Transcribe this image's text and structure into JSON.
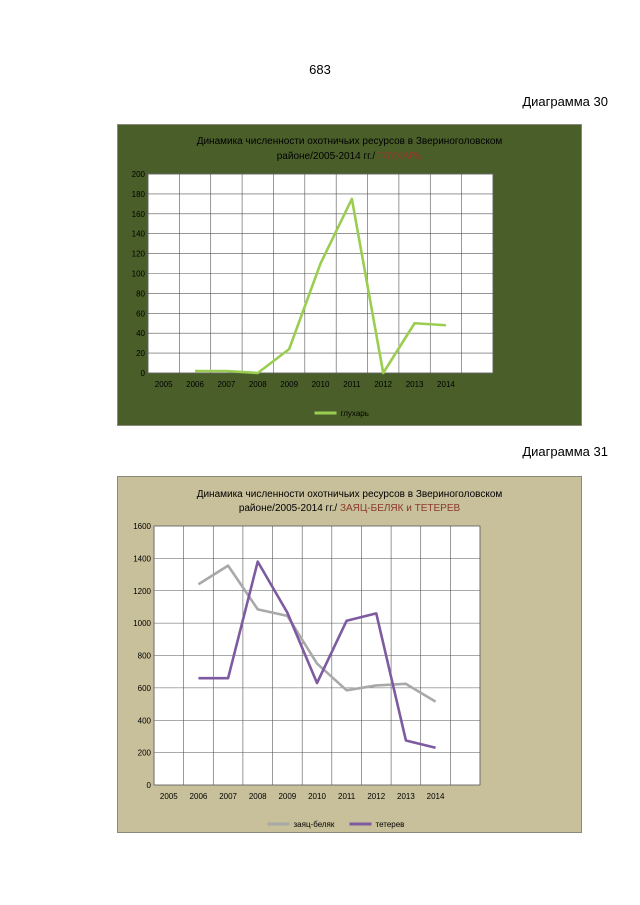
{
  "page_number": "683",
  "diagram_labels": [
    "Диаграмма 30",
    "Диаграмма 31"
  ],
  "colors": {
    "chart1_bg": "#4a5e2a",
    "chart2_bg": "#c8bf9b",
    "highlight_title": "#8b3a2a",
    "glukhar": "#9acd50",
    "zayac": "#a9a9a9",
    "teterev": "#7e5ba0"
  },
  "chart_data": [
    {
      "type": "line",
      "title_lines": [
        "Динамика численности охотничьих ресурсов в Звериноголовском",
        "районе/2005-2014 гг./"
      ],
      "title_highlight": "ГЛУХАРЬ",
      "categories": [
        "2005",
        "2006",
        "2007",
        "2008",
        "2009",
        "2010",
        "2011",
        "2012",
        "2013",
        "2014"
      ],
      "y_ticks": [
        "0",
        "20",
        "40",
        "60",
        "80",
        "100",
        "120",
        "140",
        "160",
        "180",
        "200"
      ],
      "ylim": [
        0,
        200
      ],
      "grid": true,
      "legend_position": "bottom",
      "series": [
        {
          "name": "глухарь",
          "values": [
            null,
            2,
            2,
            0,
            24,
            110,
            175,
            0,
            50,
            48
          ]
        }
      ]
    },
    {
      "type": "line",
      "title_lines": [
        "Динамика численности охотничьих ресурсов в Звериноголовском",
        "районе/2005-2014 гг./"
      ],
      "title_highlight": "ЗАЯЦ-БЕЛЯК и ТЕТЕРЕВ",
      "categories": [
        "2005",
        "2006",
        "2007",
        "2008",
        "2009",
        "2010",
        "2011",
        "2012",
        "2013",
        "2014"
      ],
      "y_ticks": [
        "0",
        "200",
        "400",
        "600",
        "800",
        "1000",
        "1200",
        "1400",
        "1600"
      ],
      "ylim": [
        0,
        1600
      ],
      "grid": true,
      "legend_position": "bottom",
      "series": [
        {
          "name": "заяц-беляк",
          "values": [
            null,
            1240,
            1355,
            1085,
            1045,
            750,
            585,
            615,
            625,
            515
          ]
        },
        {
          "name": "тетерев",
          "values": [
            null,
            660,
            660,
            1380,
            1065,
            630,
            1015,
            1060,
            275,
            230
          ]
        }
      ]
    }
  ]
}
